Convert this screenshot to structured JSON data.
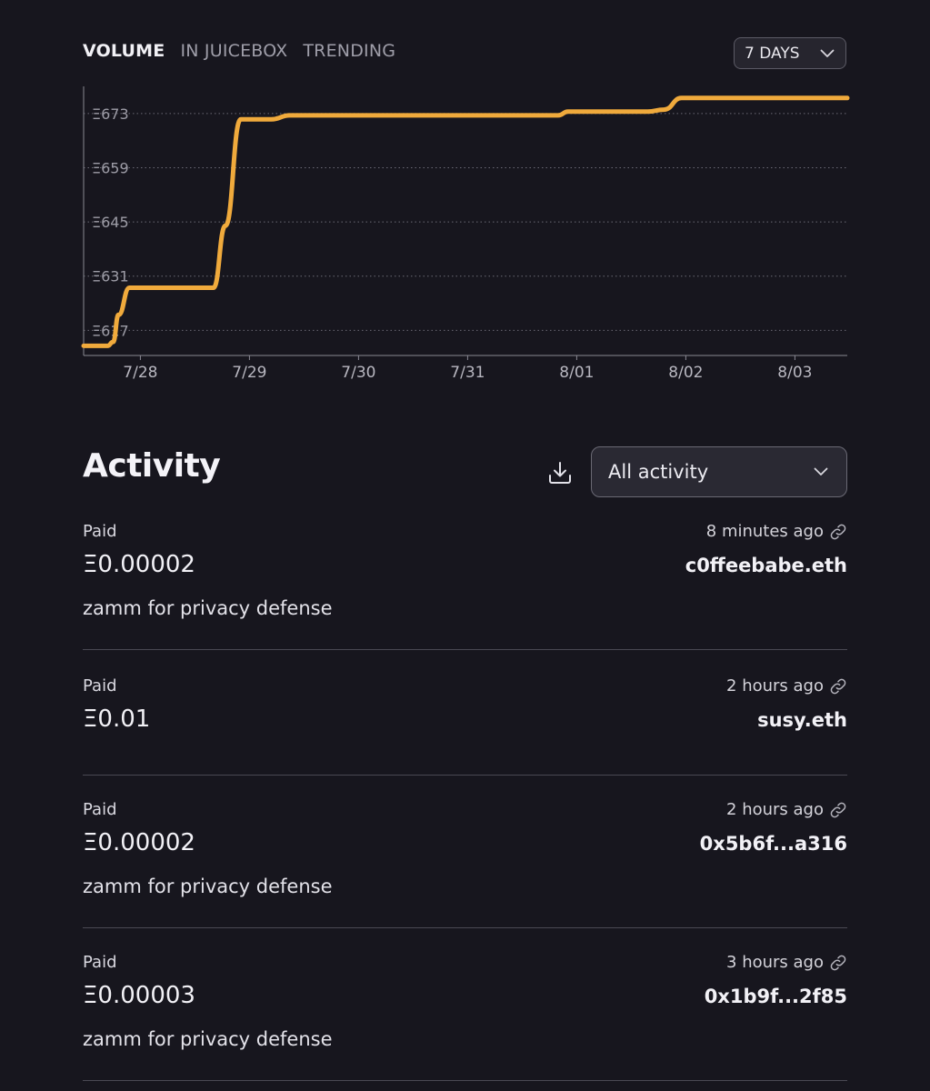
{
  "tabs": [
    {
      "label": "VOLUME",
      "active": true
    },
    {
      "label": "IN JUICEBOX",
      "active": false
    },
    {
      "label": "TRENDING",
      "active": false
    }
  ],
  "range_select": {
    "value": "7 DAYS"
  },
  "colors": {
    "accent": "#f0aa3c",
    "background": "#17161e",
    "grid": "#6b6a75"
  },
  "chart_data": {
    "type": "line",
    "title": "",
    "xlabel": "",
    "ylabel": "",
    "y_tick_labels": [
      "Ξ617",
      "Ξ631",
      "Ξ645",
      "Ξ659",
      "Ξ673"
    ],
    "y_ticks": [
      617,
      631,
      645,
      659,
      673
    ],
    "x_tick_labels": [
      "7/28",
      "7/29",
      "7/30",
      "7/31",
      "8/01",
      "8/02",
      "8/03"
    ],
    "x_ticks": [
      0,
      1,
      2,
      3,
      4,
      5,
      6
    ],
    "xlim": [
      -0.52,
      6.48
    ],
    "ylim": [
      610.5,
      680
    ],
    "grid": "horizontal dotted",
    "series": [
      {
        "color": "#f0aa3c",
        "x": [
          -0.52,
          -0.3,
          -0.25,
          -0.2,
          -0.1,
          0.5,
          0.67,
          0.78,
          0.92,
          1.2,
          1.37,
          1.6,
          3,
          3.83,
          3.92,
          4.65,
          4.8,
          4.96,
          6.48
        ],
        "y": [
          613,
          613,
          614,
          621,
          628,
          628,
          628,
          644,
          671.5,
          671.5,
          672.5,
          672.5,
          672.5,
          672.5,
          673.5,
          673.5,
          674,
          677,
          677
        ]
      }
    ]
  },
  "activity": {
    "title": "Activity",
    "filter": {
      "value": "All activity"
    },
    "items": [
      {
        "type": "Paid",
        "time": "8 minutes ago",
        "amount": "Ξ0.00002",
        "address": "c0ffeebabe.eth",
        "memo": "zamm for privacy defense"
      },
      {
        "type": "Paid",
        "time": "2 hours ago",
        "amount": "Ξ0.01",
        "address": "susy.eth",
        "memo": ""
      },
      {
        "type": "Paid",
        "time": "2 hours ago",
        "amount": "Ξ0.00002",
        "address": "0x5b6f...a316",
        "memo": "zamm for privacy defense"
      },
      {
        "type": "Paid",
        "time": "3 hours ago",
        "amount": "Ξ0.00003",
        "address": "0x1b9f...2f85",
        "memo": "zamm for privacy defense"
      }
    ]
  }
}
